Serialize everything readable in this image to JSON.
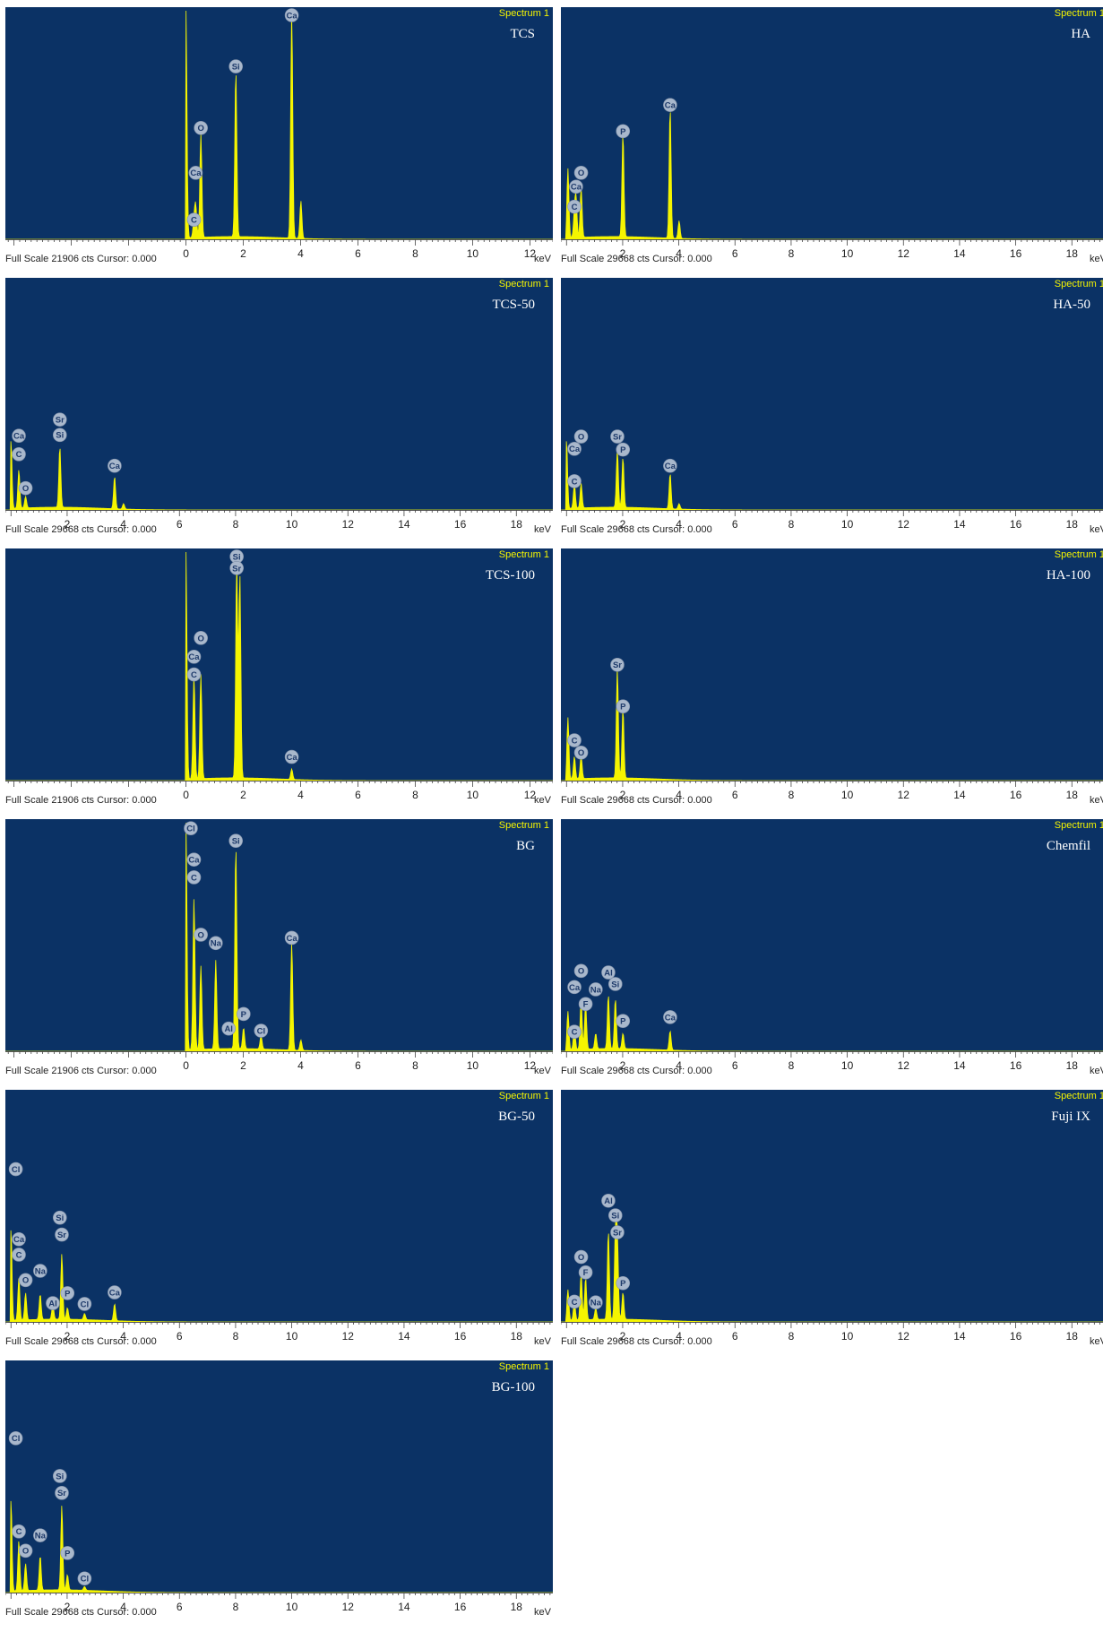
{
  "chart_data": [
    {
      "type": "spectrum",
      "sample": "TCS",
      "tag": "Spectrum 1",
      "full_scale": "Full Scale 21906 cts Cursor: 0.000",
      "xunit": "keV",
      "xlim": [
        -6.3,
        12.8
      ],
      "ticks": [
        0,
        2,
        4,
        6,
        8,
        10,
        12
      ],
      "ymax": 21906,
      "peaks": [
        {
          "x": 0.0,
          "y": 21906
        },
        {
          "x": 0.28,
          "y": 1550
        },
        {
          "x": 0.34,
          "y": 3000
        },
        {
          "x": 0.52,
          "y": 10000
        },
        {
          "x": 1.74,
          "y": 16000
        },
        {
          "x": 3.69,
          "y": 21906
        },
        {
          "x": 4.01,
          "y": 3600
        }
      ],
      "labels": [
        {
          "t": "C",
          "x": 0.28,
          "y": 1700
        },
        {
          "x": 0.34,
          "t": "Ca",
          "y": 6200
        },
        {
          "t": "O",
          "x": 0.52,
          "y": 10500
        },
        {
          "t": "Si",
          "x": 1.74,
          "y": 16400
        },
        {
          "t": "Ca",
          "x": 3.69,
          "y": 21906
        }
      ]
    },
    {
      "type": "spectrum",
      "sample": "HA",
      "tag": "Spectrum 1",
      "full_scale": "Full Scale 29668 cts Cursor: 0.000",
      "xunit": "keV",
      "xlim": [
        -0.2,
        19.3
      ],
      "ticks": [
        2,
        4,
        6,
        8,
        10,
        12,
        14,
        16,
        18
      ],
      "ymax": 29668,
      "peaks": [
        {
          "x": 0.05,
          "y": 9000
        },
        {
          "x": 0.28,
          "y": 3000
        },
        {
          "x": 0.34,
          "y": 5000
        },
        {
          "x": 0.52,
          "y": 6500
        },
        {
          "x": 2.01,
          "y": 13500
        },
        {
          "x": 3.69,
          "y": 17000
        },
        {
          "x": 4.01,
          "y": 2300
        }
      ],
      "labels": [
        {
          "t": "C",
          "x": 0.28,
          "y": 4000
        },
        {
          "t": "Ca",
          "x": 0.34,
          "y": 6600
        },
        {
          "t": "O",
          "x": 0.52,
          "y": 8400
        },
        {
          "t": "P",
          "x": 2.01,
          "y": 13800
        },
        {
          "t": "Ca",
          "x": 3.69,
          "y": 17200
        }
      ]
    },
    {
      "type": "spectrum",
      "sample": "TCS-50",
      "tag": "Spectrum 1",
      "full_scale": "Full Scale 29668 cts Cursor: 0.000",
      "xunit": "keV",
      "xlim": [
        -0.2,
        19.3
      ],
      "ticks": [
        2,
        4,
        6,
        8,
        10,
        12,
        14,
        16,
        18
      ],
      "ymax": 29668,
      "peaks": [
        {
          "x": 0.0,
          "y": 9000
        },
        {
          "x": 0.28,
          "y": 5000
        },
        {
          "x": 0.52,
          "y": 1500
        },
        {
          "x": 1.74,
          "y": 7900
        },
        {
          "x": 3.69,
          "y": 4200
        },
        {
          "x": 4.01,
          "y": 700
        }
      ],
      "labels": [
        {
          "t": "Ca",
          "x": 0.28,
          "y": 9400
        },
        {
          "t": "C",
          "x": 0.28,
          "y": 7000
        },
        {
          "t": "O",
          "x": 0.52,
          "y": 2600
        },
        {
          "t": "Sr",
          "x": 1.74,
          "y": 11500
        },
        {
          "t": "Si",
          "x": 1.74,
          "y": 9500
        },
        {
          "t": "Ca",
          "x": 3.69,
          "y": 5500
        }
      ]
    },
    {
      "type": "spectrum",
      "sample": "HA-50",
      "tag": "Spectrum 1",
      "full_scale": "Full Scale 29668 cts Cursor: 0.000",
      "xunit": "keV",
      "xlim": [
        -0.2,
        19.3
      ],
      "ticks": [
        2,
        4,
        6,
        8,
        10,
        12,
        14,
        16,
        18
      ],
      "ymax": 29668,
      "peaks": [
        {
          "x": 0.0,
          "y": 9000
        },
        {
          "x": 0.28,
          "y": 3200
        },
        {
          "x": 0.52,
          "y": 3200
        },
        {
          "x": 1.81,
          "y": 7500
        },
        {
          "x": 2.01,
          "y": 6500
        },
        {
          "x": 3.69,
          "y": 4600
        },
        {
          "x": 4.01,
          "y": 700
        }
      ],
      "labels": [
        {
          "t": "C",
          "x": 0.28,
          "y": 3500
        },
        {
          "t": "Ca",
          "x": 0.28,
          "y": 7700
        },
        {
          "t": "O",
          "x": 0.52,
          "y": 9300
        },
        {
          "t": "Sr",
          "x": 1.81,
          "y": 9300
        },
        {
          "t": "P",
          "x": 2.01,
          "y": 7600
        },
        {
          "t": "Ca",
          "x": 3.69,
          "y": 5500
        }
      ]
    },
    {
      "type": "spectrum",
      "sample": "TCS-100",
      "tag": "Spectrum 1",
      "full_scale": "Full Scale 21906 cts Cursor: 0.000",
      "xunit": "keV",
      "xlim": [
        -6.3,
        12.8
      ],
      "ticks": [
        0,
        2,
        4,
        6,
        8,
        10,
        12
      ],
      "ymax": 21906,
      "peaks": [
        {
          "x": 0.0,
          "y": 21906
        },
        {
          "x": 0.28,
          "y": 10000
        },
        {
          "x": 0.52,
          "y": 10000
        },
        {
          "x": 1.77,
          "y": 20800
        },
        {
          "x": 1.88,
          "y": 19500
        },
        {
          "x": 3.69,
          "y": 1000
        }
      ],
      "labels": [
        {
          "t": "C",
          "x": 0.28,
          "y": 10000
        },
        {
          "t": "Ca",
          "x": 0.28,
          "y": 11700
        },
        {
          "t": "O",
          "x": 0.52,
          "y": 13500
        },
        {
          "t": "Si",
          "x": 1.77,
          "y": 21906
        },
        {
          "t": "Sr",
          "x": 1.77,
          "y": 20200
        },
        {
          "t": "Ca",
          "x": 3.69,
          "y": 2100
        }
      ]
    },
    {
      "type": "spectrum",
      "sample": "HA-100",
      "tag": "Spectrum 1",
      "full_scale": "Full Scale 29668 cts Cursor: 0.000",
      "xunit": "keV",
      "xlim": [
        -0.2,
        19.3
      ],
      "ticks": [
        2,
        4,
        6,
        8,
        10,
        12,
        14,
        16,
        18
      ],
      "ymax": 29668,
      "peaks": [
        {
          "x": 0.05,
          "y": 8000
        },
        {
          "x": 0.28,
          "y": 2900
        },
        {
          "x": 0.52,
          "y": 3000
        },
        {
          "x": 1.81,
          "y": 14400
        },
        {
          "x": 2.01,
          "y": 9000
        }
      ],
      "labels": [
        {
          "t": "C",
          "x": 0.28,
          "y": 5000
        },
        {
          "t": "O",
          "x": 0.52,
          "y": 3400
        },
        {
          "t": "Sr",
          "x": 1.81,
          "y": 14800
        },
        {
          "t": "P",
          "x": 2.01,
          "y": 9400
        }
      ]
    },
    {
      "type": "spectrum",
      "sample": "BG",
      "tag": "Spectrum 1",
      "full_scale": "Full Scale 21906 cts Cursor: 0.000",
      "xunit": "keV",
      "xlim": [
        -6.3,
        12.8
      ],
      "ticks": [
        0,
        2,
        4,
        6,
        8,
        10,
        12
      ],
      "ymax": 21906,
      "peaks": [
        {
          "x": 0.0,
          "y": 21906
        },
        {
          "x": 0.28,
          "y": 14500
        },
        {
          "x": 0.52,
          "y": 8000
        },
        {
          "x": 1.04,
          "y": 8500
        },
        {
          "x": 1.74,
          "y": 19500
        },
        {
          "x": 2.01,
          "y": 2000
        },
        {
          "x": 2.62,
          "y": 1300
        },
        {
          "x": 3.69,
          "y": 10300
        },
        {
          "x": 4.01,
          "y": 1000
        }
      ],
      "labels": [
        {
          "t": "Cl",
          "x": 0.17,
          "y": 21200
        },
        {
          "t": "Ca",
          "x": 0.28,
          "y": 18200
        },
        {
          "t": "C",
          "x": 0.28,
          "y": 16500
        },
        {
          "t": "O",
          "x": 0.52,
          "y": 11000
        },
        {
          "t": "Na",
          "x": 1.04,
          "y": 10200
        },
        {
          "t": "Si",
          "x": 1.74,
          "y": 20000
        },
        {
          "t": "Al",
          "x": 1.49,
          "y": 2000
        },
        {
          "t": "P",
          "x": 2.01,
          "y": 3400
        },
        {
          "t": "Cl",
          "x": 2.62,
          "y": 1800
        },
        {
          "t": "Ca",
          "x": 3.69,
          "y": 10700
        }
      ]
    },
    {
      "type": "spectrum",
      "sample": "Chemfil",
      "tag": "Spectrum 1",
      "full_scale": "Full Scale 29668 cts Cursor: 0.000",
      "xunit": "keV",
      "xlim": [
        -0.2,
        19.3
      ],
      "ticks": [
        2,
        4,
        6,
        8,
        10,
        12,
        14,
        16,
        18
      ],
      "ymax": 29668,
      "peaks": [
        {
          "x": 0.05,
          "y": 5000
        },
        {
          "x": 0.28,
          "y": 3000
        },
        {
          "x": 0.52,
          "y": 6500
        },
        {
          "x": 0.68,
          "y": 6000
        },
        {
          "x": 1.04,
          "y": 2000
        },
        {
          "x": 1.49,
          "y": 7000
        },
        {
          "x": 1.74,
          "y": 6500
        },
        {
          "x": 2.01,
          "y": 2000
        },
        {
          "x": 3.69,
          "y": 2500
        }
      ],
      "labels": [
        {
          "t": "C",
          "x": 0.28,
          "y": 2300
        },
        {
          "t": "Ca",
          "x": 0.28,
          "y": 8100
        },
        {
          "t": "O",
          "x": 0.52,
          "y": 10200
        },
        {
          "t": "F",
          "x": 0.68,
          "y": 5900
        },
        {
          "t": "Na",
          "x": 1.04,
          "y": 7800
        },
        {
          "t": "Al",
          "x": 1.49,
          "y": 10000
        },
        {
          "t": "Si",
          "x": 1.74,
          "y": 8500
        },
        {
          "t": "P",
          "x": 2.01,
          "y": 3700
        },
        {
          "t": "Ca",
          "x": 3.69,
          "y": 4200
        }
      ]
    },
    {
      "type": "spectrum",
      "sample": "BG-50",
      "tag": "Spectrum 1",
      "full_scale": "Full Scale 29668 cts Cursor: 0.000",
      "xunit": "keV",
      "xlim": [
        -0.2,
        19.3
      ],
      "ticks": [
        2,
        4,
        6,
        8,
        10,
        12,
        14,
        16,
        18
      ],
      "ymax": 29668,
      "peaks": [
        {
          "x": 0.0,
          "y": 12000
        },
        {
          "x": 0.28,
          "y": 5500
        },
        {
          "x": 0.52,
          "y": 3500
        },
        {
          "x": 1.04,
          "y": 3300
        },
        {
          "x": 1.49,
          "y": 2000
        },
        {
          "x": 1.81,
          "y": 8500
        },
        {
          "x": 2.01,
          "y": 1500
        },
        {
          "x": 2.62,
          "y": 800
        },
        {
          "x": 3.69,
          "y": 2200
        }
      ],
      "labels": [
        {
          "t": "Cl",
          "x": 0.17,
          "y": 19600
        },
        {
          "t": "Ca",
          "x": 0.28,
          "y": 10500
        },
        {
          "t": "C",
          "x": 0.28,
          "y": 8500
        },
        {
          "t": "O",
          "x": 0.52,
          "y": 5200
        },
        {
          "t": "Na",
          "x": 1.04,
          "y": 6400
        },
        {
          "t": "Al",
          "x": 1.49,
          "y": 2200
        },
        {
          "t": "Si",
          "x": 1.74,
          "y": 13300
        },
        {
          "t": "Sr",
          "x": 1.81,
          "y": 11100
        },
        {
          "t": "P",
          "x": 2.01,
          "y": 3500
        },
        {
          "t": "Cl",
          "x": 2.62,
          "y": 2100
        },
        {
          "t": "Ca",
          "x": 3.69,
          "y": 3600
        }
      ]
    },
    {
      "type": "spectrum",
      "sample": "Fuji IX",
      "tag": "Spectrum 1",
      "full_scale": "Full Scale 29668 cts Cursor: 0.000",
      "xunit": "keV",
      "xlim": [
        -0.2,
        19.3
      ],
      "ticks": [
        2,
        4,
        6,
        8,
        10,
        12,
        14,
        16,
        18
      ],
      "ymax": 29668,
      "peaks": [
        {
          "x": 0.05,
          "y": 4000
        },
        {
          "x": 0.28,
          "y": 2500
        },
        {
          "x": 0.52,
          "y": 6200
        },
        {
          "x": 0.68,
          "y": 5500
        },
        {
          "x": 1.04,
          "y": 1500
        },
        {
          "x": 1.49,
          "y": 11500
        },
        {
          "x": 1.74,
          "y": 11000
        },
        {
          "x": 1.81,
          "y": 10500
        },
        {
          "x": 2.01,
          "y": 3500
        }
      ],
      "labels": [
        {
          "t": "C",
          "x": 0.28,
          "y": 2400
        },
        {
          "t": "O",
          "x": 0.52,
          "y": 8200
        },
        {
          "t": "F",
          "x": 0.68,
          "y": 6200
        },
        {
          "t": "Na",
          "x": 1.04,
          "y": 2300
        },
        {
          "t": "Al",
          "x": 1.49,
          "y": 15500
        },
        {
          "t": "Si",
          "x": 1.74,
          "y": 13600
        },
        {
          "t": "Sr",
          "x": 1.81,
          "y": 11400
        },
        {
          "t": "P",
          "x": 2.01,
          "y": 4800
        }
      ]
    },
    {
      "type": "spectrum",
      "sample": "BG-100",
      "tag": "Spectrum 1",
      "full_scale": "Full Scale 29668 cts Cursor: 0.000",
      "xunit": "keV",
      "xlim": [
        -0.2,
        19.3
      ],
      "ticks": [
        2,
        4,
        6,
        8,
        10,
        12,
        14,
        16,
        18
      ],
      "ymax": 29668,
      "peaks": [
        {
          "x": 0.0,
          "y": 12000
        },
        {
          "x": 0.28,
          "y": 6500
        },
        {
          "x": 0.52,
          "y": 3500
        },
        {
          "x": 1.04,
          "y": 4500
        },
        {
          "x": 1.81,
          "y": 11000
        },
        {
          "x": 2.01,
          "y": 2000
        },
        {
          "x": 2.62,
          "y": 500
        }
      ],
      "labels": [
        {
          "t": "Cl",
          "x": 0.17,
          "y": 19800
        },
        {
          "t": "C",
          "x": 0.28,
          "y": 7700
        },
        {
          "t": "O",
          "x": 0.52,
          "y": 5200
        },
        {
          "t": "Na",
          "x": 1.04,
          "y": 7200
        },
        {
          "t": "Si",
          "x": 1.74,
          "y": 14900
        },
        {
          "t": "Sr",
          "x": 1.81,
          "y": 12700
        },
        {
          "t": "P",
          "x": 2.01,
          "y": 4900
        },
        {
          "t": "Cl",
          "x": 2.62,
          "y": 1600
        }
      ]
    }
  ]
}
